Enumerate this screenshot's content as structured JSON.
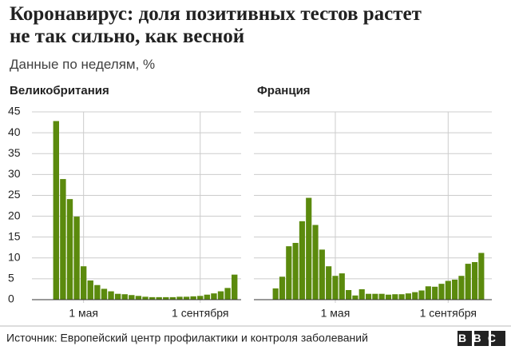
{
  "title": "Коронавирус: доля позитивных тестов растет не так сильно, как весной",
  "subtitle": "Данные по неделям, %",
  "source": "Источник: Европейский центр профилактики и контроля заболеваний",
  "logo": "BBC",
  "chart_data": [
    {
      "type": "bar",
      "title": "Великобритания",
      "color": "#5b8a0d",
      "ytick_labels": true,
      "grid": true,
      "categories": [
        null,
        null,
        null,
        null,
        "1 мая",
        null,
        null,
        null,
        null,
        null,
        null,
        null,
        null,
        null,
        null,
        null,
        null,
        null,
        null,
        null,
        null,
        "1 сентября",
        null,
        null,
        null,
        null,
        null
      ],
      "values": [
        42.8,
        28.9,
        24.1,
        19.9,
        8.0,
        4.6,
        3.5,
        2.6,
        2.0,
        1.4,
        1.3,
        1.1,
        0.9,
        0.7,
        0.6,
        0.6,
        0.6,
        0.6,
        0.7,
        0.7,
        0.8,
        0.9,
        1.2,
        1.5,
        2.0,
        2.8,
        6.0
      ],
      "ylim": [
        0,
        45
      ],
      "yticks": [
        0,
        5,
        10,
        15,
        20,
        25,
        30,
        35,
        40,
        45
      ]
    },
    {
      "type": "bar",
      "title": "Франция",
      "color": "#5b8a0d",
      "ytick_labels": false,
      "grid": true,
      "categories": [
        null,
        null,
        null,
        null,
        null,
        null,
        null,
        null,
        null,
        "1 мая",
        null,
        null,
        null,
        null,
        null,
        null,
        null,
        null,
        null,
        null,
        null,
        null,
        null,
        null,
        null,
        null,
        "1 сентября",
        null,
        null,
        null,
        null,
        null
      ],
      "values": [
        2.7,
        5.5,
        12.8,
        13.6,
        18.8,
        24.4,
        17.9,
        12.0,
        8.0,
        5.7,
        6.3,
        2.3,
        1.0,
        2.5,
        1.4,
        1.4,
        1.4,
        1.2,
        1.3,
        1.3,
        1.5,
        1.8,
        2.2,
        3.2,
        3.1,
        3.8,
        4.5,
        4.8,
        5.7,
        8.6,
        9.0,
        11.2
      ],
      "ylim": [
        0,
        45
      ],
      "yticks": [
        0,
        5,
        10,
        15,
        20,
        25,
        30,
        35,
        40,
        45
      ]
    }
  ]
}
